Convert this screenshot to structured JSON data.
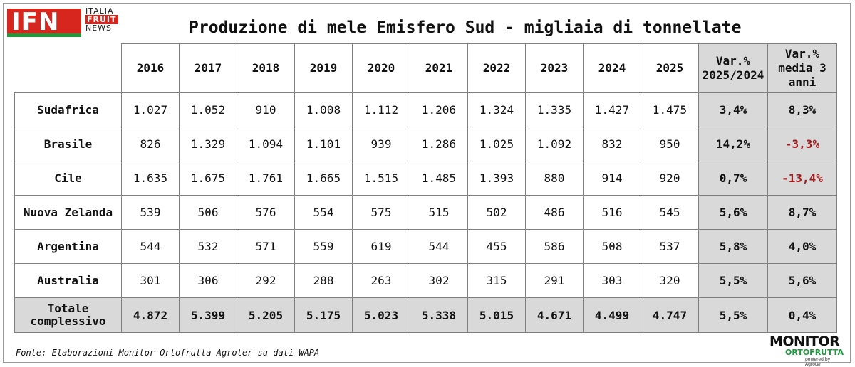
{
  "logo": {
    "letters": "IFN",
    "line1": "ITALIA",
    "line2": "FRUIT",
    "line3": "NEWS"
  },
  "title": "Produzione di mele Emisfero Sud - migliaia di tonnellate",
  "footer": "Fonte: Elaborazioni Monitor Ortofrutta Agroter su dati WAPA",
  "brand": {
    "top": "MONITOR",
    "bottom": "ORTOFRUTTA",
    "sub": "powered by Agroter"
  },
  "colors": {
    "variation_bg": "#d9d9d9",
    "negative": "#a11d1d",
    "logo_red": "#d7261e",
    "logo_green": "#1b9b3a"
  },
  "chart_data": {
    "type": "table",
    "title": "Produzione di mele Emisfero Sud - migliaia di tonnellate",
    "columns": [
      "2016",
      "2017",
      "2018",
      "2019",
      "2020",
      "2021",
      "2022",
      "2023",
      "2024",
      "2025",
      "Var.% 2025/2024",
      "Var.% media 3 anni"
    ],
    "column_lines": {
      "var1": [
        "Var.%",
        "2025/2024"
      ],
      "var2": [
        "Var.%",
        "media 3",
        "anni"
      ]
    },
    "rows": [
      {
        "label": "Sudafrica",
        "values": [
          "1.027",
          "1.052",
          "910",
          "1.008",
          "1.112",
          "1.206",
          "1.324",
          "1.335",
          "1.427",
          "1.475",
          "3,4%",
          "8,3%"
        ],
        "negative": [
          false,
          false
        ]
      },
      {
        "label": "Brasile",
        "values": [
          "826",
          "1.329",
          "1.094",
          "1.101",
          "939",
          "1.286",
          "1.025",
          "1.092",
          "832",
          "950",
          "14,2%",
          "-3,3%"
        ],
        "negative": [
          false,
          true
        ]
      },
      {
        "label": "Cile",
        "values": [
          "1.635",
          "1.675",
          "1.761",
          "1.665",
          "1.515",
          "1.485",
          "1.393",
          "880",
          "914",
          "920",
          "0,7%",
          "-13,4%"
        ],
        "negative": [
          false,
          true
        ]
      },
      {
        "label": "Nuova Zelanda",
        "values": [
          "539",
          "506",
          "576",
          "554",
          "575",
          "515",
          "502",
          "486",
          "516",
          "545",
          "5,6%",
          "8,7%"
        ],
        "negative": [
          false,
          false
        ]
      },
      {
        "label": "Argentina",
        "values": [
          "544",
          "532",
          "571",
          "559",
          "619",
          "544",
          "455",
          "586",
          "508",
          "537",
          "5,8%",
          "4,0%"
        ],
        "negative": [
          false,
          false
        ]
      },
      {
        "label": "Australia",
        "values": [
          "301",
          "306",
          "292",
          "288",
          "263",
          "302",
          "315",
          "291",
          "303",
          "320",
          "5,5%",
          "5,6%"
        ],
        "negative": [
          false,
          false
        ]
      }
    ],
    "total": {
      "label_lines": [
        "Totale",
        "complessivo"
      ],
      "values": [
        "4.872",
        "5.399",
        "5.205",
        "5.175",
        "5.023",
        "5.338",
        "5.015",
        "4.671",
        "4.499",
        "4.747",
        "5,5%",
        "0,4%"
      ]
    }
  }
}
